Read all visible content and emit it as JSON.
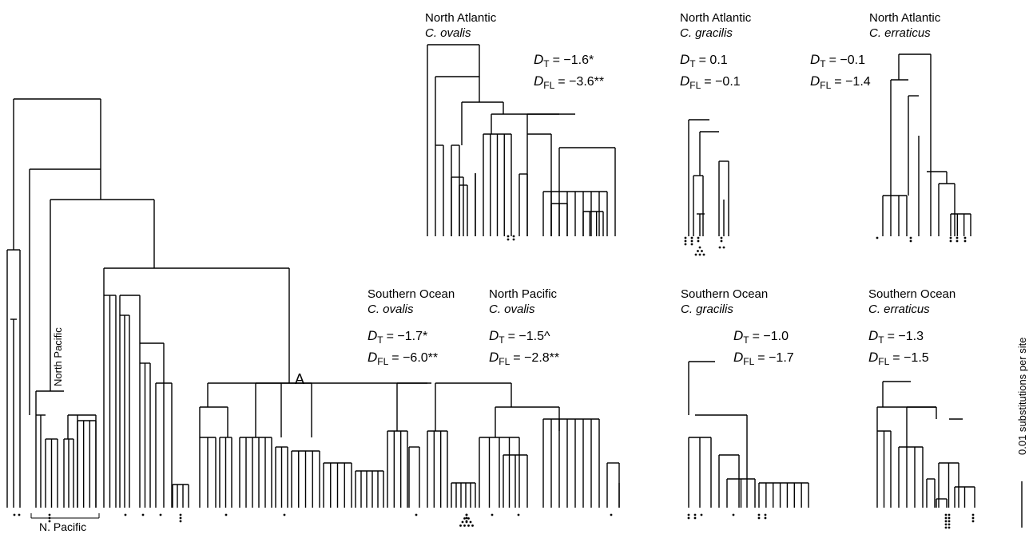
{
  "main_tree": {
    "node_label": "A",
    "north_pacific_clade_label": "North Pacific",
    "bracket_label": "N. Pacific"
  },
  "scale_bar": {
    "label": "0.01 substitutions per site"
  },
  "panels": [
    {
      "region": "North Atlantic",
      "species": "C. ovalis",
      "dt_value": "= −1.6*",
      "dfl_value": "= −3.6**"
    },
    {
      "region": "North Atlantic",
      "species": "C. gracilis",
      "dt_value": "= 0.1",
      "dfl_value": "= −0.1"
    },
    {
      "region": "North Atlantic",
      "species": "C. erraticus",
      "dt_value": "= −0.1",
      "dfl_value": "= −1.4"
    },
    {
      "region": "Southern Ocean",
      "species": "C. ovalis",
      "dt_value": "= −1.7*",
      "dfl_value": "= −6.0**"
    },
    {
      "region": "North Pacific",
      "species": "C. ovalis",
      "dt_value": "= −1.5^",
      "dfl_value": "= −2.8**"
    },
    {
      "region": "Southern Ocean",
      "species": "C. gracilis",
      "dt_value": "= −1.0",
      "dfl_value": "= −1.7"
    },
    {
      "region": "Southern Ocean",
      "species": "C. erraticus",
      "dt_value": "= −1.3",
      "dfl_value": "= −1.5"
    }
  ],
  "stat_symbols": {
    "d": "D",
    "t_sub": "T",
    "fl_sub": "FL"
  }
}
